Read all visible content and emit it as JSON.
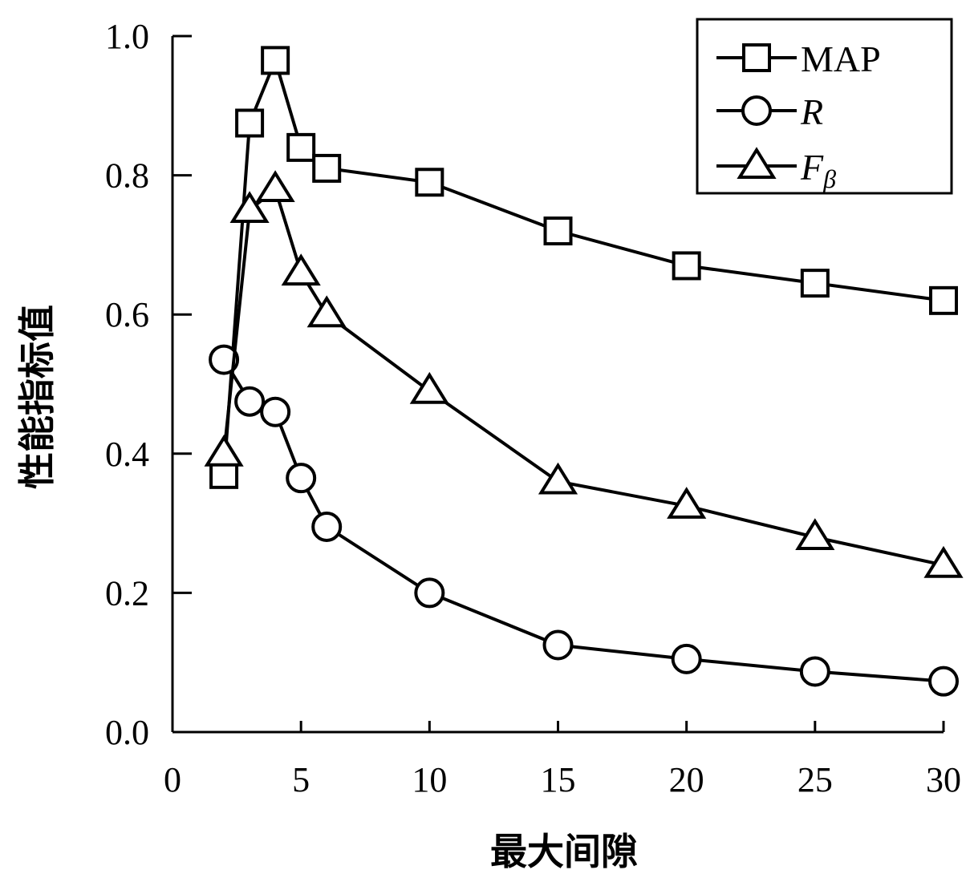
{
  "chart_data": {
    "type": "line",
    "xlabel": "最大间隙",
    "ylabel": "性能指标值",
    "xlim": [
      0,
      30
    ],
    "ylim": [
      0.0,
      1.0
    ],
    "xticks": [
      "0",
      "5",
      "10",
      "15",
      "20",
      "25",
      "30"
    ],
    "yticks": [
      "0.0",
      "0.2",
      "0.4",
      "0.6",
      "0.8",
      "1.0"
    ],
    "grid": false,
    "legend_position": "top-right",
    "series": [
      {
        "name": "MAP",
        "marker": "square",
        "x": [
          2,
          3,
          4,
          5,
          6,
          10,
          15,
          20,
          25,
          30
        ],
        "y": [
          0.37,
          0.875,
          0.965,
          0.84,
          0.81,
          0.79,
          0.72,
          0.67,
          0.645,
          0.62
        ]
      },
      {
        "name": "R",
        "marker": "circle",
        "x": [
          2,
          3,
          4,
          5,
          6,
          10,
          15,
          20,
          25,
          30
        ],
        "y": [
          0.535,
          0.475,
          0.46,
          0.365,
          0.295,
          0.2,
          0.125,
          0.105,
          0.087,
          0.073
        ]
      },
      {
        "name": "F",
        "name_subscript": "β",
        "marker": "triangle",
        "x": [
          2,
          3,
          4,
          5,
          6,
          10,
          15,
          20,
          25,
          30
        ],
        "y": [
          0.4,
          0.75,
          0.78,
          0.66,
          0.6,
          0.49,
          0.36,
          0.325,
          0.28,
          0.24
        ]
      }
    ]
  }
}
